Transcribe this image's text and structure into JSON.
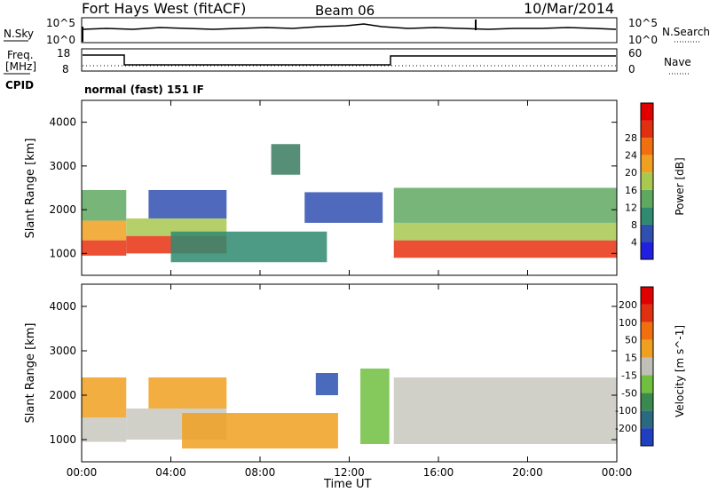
{
  "header": {
    "radar": "Fort Hays West (fitACF)",
    "beam": "Beam 06",
    "date": "10/Mar/2014"
  },
  "nsky_panel": {
    "left_label": "N.Sky",
    "right_label": "N.Search",
    "left_ticks": [
      "10^5",
      "10^0"
    ],
    "right_ticks": [
      "10^5",
      "10^0"
    ]
  },
  "freq_panel": {
    "left_label_1": "Freq.",
    "left_label_2": "[MHz]",
    "right_label": "Nave",
    "left_ticks": [
      "18",
      "8"
    ],
    "right_ticks": [
      "60",
      "0"
    ]
  },
  "cpid": {
    "label": "CPID",
    "mode": "normal (fast) 151 IF"
  },
  "x_axis": {
    "label": "Time UT",
    "ticks": [
      "00:00",
      "04:00",
      "08:00",
      "12:00",
      "16:00",
      "20:00",
      "00:00"
    ]
  },
  "chart_data": [
    {
      "type": "heatmap",
      "name": "power-panel",
      "ylabel": "Slant Range [km]",
      "xlim": [
        0,
        24
      ],
      "ylim": [
        500,
        4500
      ],
      "yticks": [
        1000,
        2000,
        3000,
        4000
      ],
      "colorbar": {
        "label": "Power [dB]",
        "ticks": [
          "4",
          "8",
          "12",
          "16",
          "20",
          "24",
          "28"
        ],
        "colors": [
          "#2020e0",
          "#3050b0",
          "#2f8a70",
          "#5fa860",
          "#a8c850",
          "#f0a020",
          "#f07010",
          "#e03010",
          "#e00000"
        ]
      },
      "bands": [
        {
          "x0": 0.0,
          "x1": 2.0,
          "y0": 950,
          "y1": 1300,
          "color": "#e83010"
        },
        {
          "x0": 0.0,
          "x1": 2.0,
          "y0": 1300,
          "y1": 1750,
          "color": "#f0a020"
        },
        {
          "x0": 0.0,
          "x1": 2.0,
          "y0": 1750,
          "y1": 2450,
          "color": "#5fa860"
        },
        {
          "x0": 2.0,
          "x1": 6.5,
          "y0": 1000,
          "y1": 1400,
          "color": "#e83010"
        },
        {
          "x0": 2.0,
          "x1": 6.5,
          "y0": 1400,
          "y1": 1800,
          "color": "#a8c850"
        },
        {
          "x0": 3.0,
          "x1": 6.5,
          "y0": 1800,
          "y1": 2450,
          "color": "#3050b0"
        },
        {
          "x0": 4.0,
          "x1": 11.0,
          "y0": 800,
          "y1": 1500,
          "color": "#2f8a70"
        },
        {
          "x0": 8.5,
          "x1": 9.8,
          "y0": 2800,
          "y1": 3500,
          "color": "#3a7a60"
        },
        {
          "x0": 10.0,
          "x1": 13.5,
          "y0": 1700,
          "y1": 2400,
          "color": "#3050b0"
        },
        {
          "x0": 14.0,
          "x1": 24.0,
          "y0": 900,
          "y1": 1300,
          "color": "#e83010"
        },
        {
          "x0": 14.0,
          "x1": 24.0,
          "y0": 1300,
          "y1": 1700,
          "color": "#a8c850"
        },
        {
          "x0": 14.0,
          "x1": 24.0,
          "y0": 1700,
          "y1": 2500,
          "color": "#5fa860"
        }
      ]
    },
    {
      "type": "heatmap",
      "name": "velocity-panel",
      "ylabel": "Slant Range [km]",
      "xlim": [
        0,
        24
      ],
      "ylim": [
        500,
        4500
      ],
      "yticks": [
        1000,
        2000,
        3000,
        4000
      ],
      "colorbar": {
        "label": "Velocity [m s^-1]",
        "ticks": [
          "200",
          "100",
          "50",
          "15",
          "-15",
          "-50",
          "-100",
          "-200"
        ],
        "colors": [
          "#1f3fbf",
          "#2a6a80",
          "#3a8a50",
          "#70c040",
          "#c0c0b8",
          "#f0a020",
          "#f07010",
          "#e03010",
          "#e00000"
        ]
      },
      "bands": [
        {
          "x0": 0.0,
          "x1": 2.0,
          "y0": 950,
          "y1": 1500,
          "color": "#c8c8c0"
        },
        {
          "x0": 0.0,
          "x1": 2.0,
          "y0": 1500,
          "y1": 2400,
          "color": "#f0a020"
        },
        {
          "x0": 2.0,
          "x1": 6.5,
          "y0": 1000,
          "y1": 1700,
          "color": "#c8c8c0"
        },
        {
          "x0": 3.0,
          "x1": 6.5,
          "y0": 1700,
          "y1": 2400,
          "color": "#f0a020"
        },
        {
          "x0": 4.5,
          "x1": 11.5,
          "y0": 800,
          "y1": 1600,
          "color": "#f0a020"
        },
        {
          "x0": 10.5,
          "x1": 11.5,
          "y0": 2000,
          "y1": 2500,
          "color": "#2a50b0"
        },
        {
          "x0": 12.5,
          "x1": 13.8,
          "y0": 900,
          "y1": 2600,
          "color": "#70c040"
        },
        {
          "x0": 14.0,
          "x1": 24.0,
          "y0": 900,
          "y1": 1600,
          "color": "#c8c8c0"
        },
        {
          "x0": 14.0,
          "x1": 24.0,
          "y0": 1600,
          "y1": 2400,
          "color": "#c8c8c0"
        }
      ]
    }
  ]
}
